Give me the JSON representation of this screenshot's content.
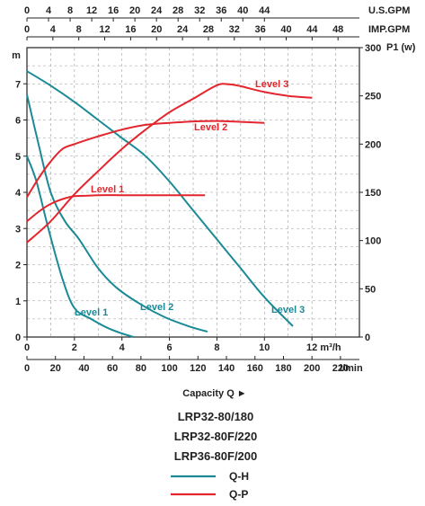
{
  "chart_data": {
    "type": "line",
    "x_axes": {
      "bottom_m3h": {
        "label": "m³/h",
        "ticks": [
          "0",
          "2",
          "4",
          "6",
          "8",
          "10",
          "12"
        ],
        "range": [
          0,
          14
        ]
      },
      "bottom_lmin": {
        "label": "l/min",
        "ticks": [
          "0",
          "20",
          "40",
          "60",
          "80",
          "100",
          "120",
          "140",
          "160",
          "180",
          "200",
          "220"
        ],
        "range": [
          0,
          233.3
        ]
      },
      "top_usgpm": {
        "label": "U.S.GPM",
        "ticks": [
          "0",
          "4",
          "8",
          "12",
          "16",
          "20",
          "24",
          "28",
          "32",
          "36",
          "40",
          "44"
        ],
        "range": [
          0,
          61.6
        ]
      },
      "top_impgpm": {
        "label": "IMP.GPM",
        "ticks": [
          "0",
          "4",
          "8",
          "12",
          "16",
          "20",
          "24",
          "28",
          "32",
          "36",
          "40",
          "44",
          "48"
        ],
        "range": [
          0,
          51.3
        ]
      }
    },
    "y_axes": {
      "left_m": {
        "label": "m",
        "ticks": [
          "0",
          "1",
          "2",
          "3",
          "4",
          "5",
          "6",
          "7"
        ],
        "range": [
          0,
          8
        ]
      },
      "right_w": {
        "label": "P1 (w)",
        "ticks": [
          "0",
          "50",
          "100",
          "150",
          "200",
          "250",
          "300"
        ],
        "range": [
          0,
          300
        ]
      }
    },
    "xlabel": "Capacity Q ►",
    "grid": true,
    "series": [
      {
        "name": "Level 1",
        "kind": "Q-H",
        "axis": "left_m",
        "color": "#1a8a96",
        "x": [
          0,
          0.4,
          0.9,
          1.5,
          2.0,
          2.7,
          3.4,
          4.0,
          4.5
        ],
        "y": [
          5.0,
          4.3,
          3.0,
          1.6,
          0.8,
          0.5,
          0.25,
          0.1,
          0.0
        ]
      },
      {
        "name": "Level 2",
        "kind": "Q-H",
        "axis": "left_m",
        "color": "#1a8a96",
        "x": [
          0,
          0.5,
          1.0,
          1.6,
          2.2,
          3.0,
          3.8,
          4.8,
          5.8,
          6.8,
          7.6
        ],
        "y": [
          6.7,
          5.3,
          4.0,
          3.2,
          2.7,
          1.9,
          1.35,
          0.9,
          0.55,
          0.3,
          0.15
        ]
      },
      {
        "name": "Level 3",
        "kind": "Q-H",
        "axis": "left_m",
        "color": "#1a8a96",
        "x": [
          0,
          1.0,
          2.0,
          3.0,
          4.0,
          5.0,
          6.0,
          7.0,
          8.0,
          9.0,
          10.0,
          11.2
        ],
        "y": [
          7.35,
          6.95,
          6.5,
          6.0,
          5.5,
          5.0,
          4.3,
          3.5,
          2.7,
          1.9,
          1.1,
          0.3
        ]
      },
      {
        "name": "Level 1",
        "kind": "Q-P",
        "axis": "right_w",
        "color": "#e3262e",
        "x": [
          0,
          0.5,
          1.0,
          1.5,
          2.0,
          2.5,
          3.0,
          4.0,
          5.0,
          6.0,
          7.5
        ],
        "y": [
          120,
          130,
          138,
          143,
          146,
          146.5,
          147,
          147,
          147,
          147,
          147
        ]
      },
      {
        "name": "Level 2",
        "kind": "Q-P",
        "axis": "right_w",
        "color": "#e3262e",
        "x": [
          0,
          0.5,
          1.0,
          1.5,
          2.0,
          3.0,
          4.0,
          5.0,
          6.0,
          7.0,
          8.0,
          9.0,
          10.0
        ],
        "y": [
          145,
          165,
          182,
          195,
          200,
          208,
          215,
          220,
          222,
          223.5,
          224,
          223,
          222
        ]
      },
      {
        "name": "Level 3",
        "kind": "Q-P",
        "axis": "right_w",
        "color": "#e3262e",
        "x": [
          0,
          1.0,
          2.0,
          3.0,
          4.0,
          5.0,
          6.0,
          7.0,
          8.0,
          8.5,
          9.0,
          10.0,
          11.0,
          12.0
        ],
        "y": [
          98,
          120,
          148,
          172,
          195,
          215,
          233,
          247,
          261,
          262,
          260,
          254,
          250,
          248
        ]
      }
    ],
    "annotations": [
      {
        "text": "Level 1",
        "color": "#1a8a96"
      },
      {
        "text": "Level 2",
        "color": "#1a8a96"
      },
      {
        "text": "Level 3",
        "color": "#1a8a96"
      },
      {
        "text": "Level 1",
        "color": "#e3262e"
      },
      {
        "text": "Level 2",
        "color": "#e3262e"
      },
      {
        "text": "Level 3",
        "color": "#e3262e"
      }
    ]
  },
  "models": [
    "LRP32-80/180",
    "LRP32-80F/220",
    "LRP36-80F/200"
  ],
  "legend": [
    {
      "label": "Q-H",
      "color": "#1a8a96"
    },
    {
      "label": "Q-P",
      "color": "#e3262e"
    }
  ]
}
